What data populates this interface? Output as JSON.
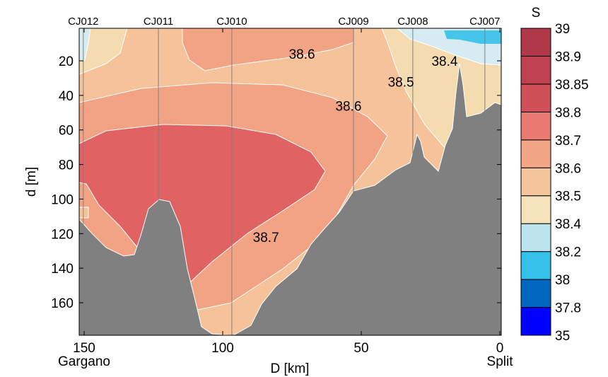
{
  "chart_data": {
    "type": "contour",
    "title": "",
    "xlabel": "D [km]",
    "ylabel": "d [m]",
    "xlim": [
      151.8,
      0
    ],
    "ylim": [
      1.2,
      178.8
    ],
    "xticks": [
      150,
      100,
      50,
      0
    ],
    "yticks": [
      20,
      40,
      60,
      80,
      100,
      120,
      140,
      160
    ],
    "x_end_labels": [
      {
        "value": 150,
        "text": "Gargano"
      },
      {
        "value": 0,
        "text": "Split"
      }
    ],
    "stations": [
      {
        "name": "CJ012",
        "D": 150.3
      },
      {
        "name": "CJ011",
        "D": 123.2
      },
      {
        "name": "CJ010",
        "D": 96.7
      },
      {
        "name": "CJ009",
        "D": 52.8
      },
      {
        "name": "CJ008",
        "D": 31.4
      },
      {
        "name": "CJ007",
        "D": 5.4
      }
    ],
    "contour_labels": [
      {
        "text": "38.6",
        "D": 71.4,
        "d": 16
      },
      {
        "text": "38.4",
        "D": 19.9,
        "d": 20
      },
      {
        "text": "38.5",
        "D": 35.7,
        "d": 32
      },
      {
        "text": "38.6",
        "D": 54.6,
        "d": 46
      },
      {
        "text": "38.7",
        "D": 84.4,
        "d": 122
      }
    ],
    "colorbar": {
      "label": "S",
      "levels": [
        "35",
        "37.8",
        "38",
        "38.2",
        "38.4",
        "38.5",
        "38.6",
        "38.7",
        "38.8",
        "38.85",
        "38.9",
        "39"
      ],
      "colors": [
        "#0000ff",
        "#0066c0",
        "#35c0ea",
        "#bde3ee",
        "#f5e3bb",
        "#f5c59b",
        "#f2a686",
        "#e87a72",
        "#d05058",
        "#bf4050",
        "#b03848"
      ]
    },
    "grid": false
  },
  "colors": {
    "bathymetry": "#808080",
    "station_line": "#808080"
  }
}
